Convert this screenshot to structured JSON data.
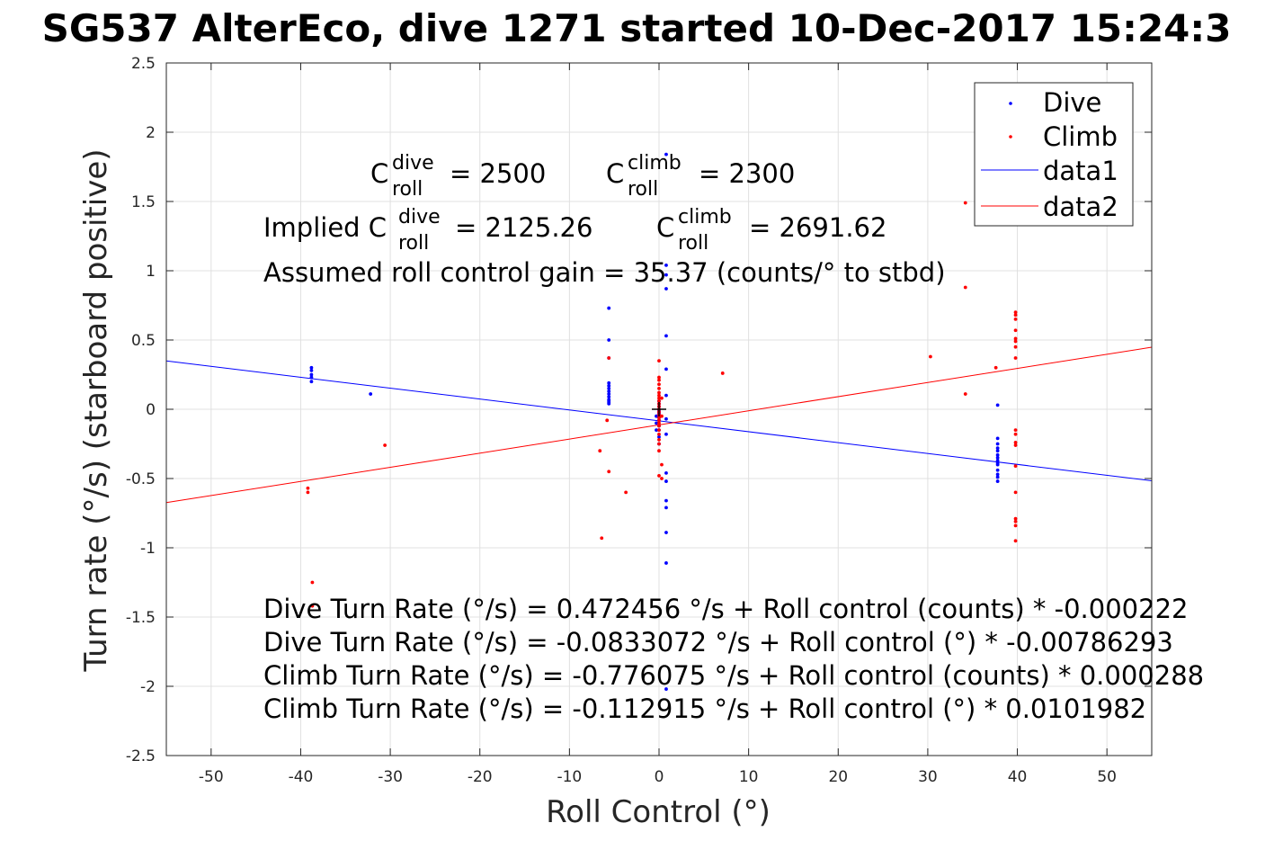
{
  "chart_data": {
    "type": "scatter",
    "title": "SG537 AlterEco, dive 1271 started 10-Dec-2017 15:24:3",
    "xlabel": "Roll Control (°)",
    "ylabel": "Turn rate (°/s) (starboard positive)",
    "xlim": [
      -55,
      55
    ],
    "ylim": [
      -2.5,
      2.5
    ],
    "xticks": [
      -50,
      -40,
      -30,
      -20,
      -10,
      0,
      10,
      20,
      30,
      40,
      50
    ],
    "yticks": [
      -2.5,
      -2,
      -1.5,
      -1,
      -0.5,
      0,
      0.5,
      1,
      1.5,
      2,
      2.5
    ],
    "xtick_labels": [
      "-50",
      "-40",
      "-30",
      "-20",
      "-10",
      "0",
      "10",
      "20",
      "30",
      "40",
      "50"
    ],
    "ytick_labels": [
      "-2.5",
      "-2",
      "-1.5",
      "-1",
      "-0.5",
      "0",
      "0.5",
      "1",
      "1.5",
      "2",
      "2.5"
    ],
    "grid": true,
    "legend_position": "top-right",
    "colors": {
      "dive": "#0000ff",
      "climb": "#ff0000",
      "axes": "#262626",
      "grid": "#e0e0e0"
    },
    "series": [
      {
        "name": "Dive",
        "kind": "points",
        "color": "#0000ff",
        "x": [
          -38.8,
          -38.8,
          -38.8,
          -38.8,
          -38.8,
          -32.2,
          -5.6,
          -5.6,
          -5.6,
          -5.6,
          -5.6,
          -5.6,
          -5.6,
          -5.6,
          -5.6,
          -5.6,
          -5.6,
          -5.6,
          -5.6,
          0.0,
          0.0,
          0.0,
          0.0,
          0.0,
          0.0,
          0.0,
          0.0,
          0.0,
          0.0,
          0.0,
          0.0,
          0.0,
          0.0,
          -0.3,
          -0.3,
          -0.3,
          0.8,
          0.8,
          0.8,
          0.8,
          0.8,
          0.8,
          0.8,
          0.8,
          0.8,
          0.8,
          0.8,
          0.8,
          0.8,
          0.8,
          0.8,
          0.8,
          37.8,
          37.8,
          37.8,
          37.8,
          37.8,
          37.8,
          37.8,
          37.8,
          37.8,
          37.8,
          37.8,
          37.8,
          37.8,
          37.8
        ],
        "y": [
          0.3,
          0.28,
          0.25,
          0.23,
          0.2,
          0.11,
          0.73,
          0.5,
          0.37,
          0.19,
          0.17,
          0.15,
          0.13,
          0.11,
          0.09,
          0.07,
          0.06,
          0.05,
          0.04,
          0.06,
          0.04,
          0.02,
          0.0,
          -0.01,
          -0.02,
          -0.03,
          -0.04,
          -0.06,
          -0.08,
          -0.12,
          -0.15,
          -0.2,
          -0.25,
          -0.05,
          -0.1,
          -0.15,
          1.84,
          1.04,
          0.97,
          0.87,
          0.53,
          0.29,
          0.1,
          -0.18,
          -0.46,
          -0.52,
          -0.66,
          -0.71,
          -0.89,
          -1.11,
          -2.02,
          -0.07,
          0.03,
          -0.21,
          -0.25,
          -0.28,
          -0.3,
          -0.33,
          -0.35,
          -0.37,
          -0.39,
          -0.4,
          -0.44,
          -0.47,
          -0.49,
          -0.52
        ]
      },
      {
        "name": "Climb",
        "kind": "points",
        "color": "#ff0000",
        "x": [
          -39.2,
          -39.2,
          -38.7,
          -38.7,
          -30.6,
          -6.6,
          -6.4,
          -5.8,
          -5.6,
          -5.6,
          -3.7,
          0.0,
          0.0,
          0.0,
          0.0,
          0.0,
          0.0,
          0.0,
          0.0,
          0.0,
          0.0,
          0.0,
          0.0,
          0.0,
          0.0,
          0.0,
          0.0,
          0.0,
          0.0,
          0.0,
          0.0,
          0.0,
          0.0,
          0.0,
          0.0,
          0.3,
          0.3,
          0.3,
          0.3,
          7.1,
          30.3,
          34.2,
          34.2,
          34.2,
          37.6,
          39.8,
          39.8,
          39.8,
          39.8,
          39.8,
          39.8,
          39.8,
          39.8,
          39.8,
          39.8,
          39.8,
          39.8,
          39.8,
          39.8,
          39.8,
          39.8,
          39.8,
          39.8
        ],
        "y": [
          -0.57,
          -0.6,
          -1.25,
          -1.42,
          -0.26,
          -0.3,
          -0.93,
          -0.08,
          -0.45,
          0.37,
          -0.6,
          0.35,
          0.23,
          0.21,
          0.18,
          0.15,
          0.12,
          0.1,
          0.08,
          0.06,
          0.04,
          0.02,
          0.0,
          -0.02,
          -0.04,
          -0.06,
          -0.08,
          -0.1,
          -0.12,
          -0.15,
          -0.18,
          -0.22,
          -0.25,
          -0.3,
          -0.48,
          -0.4,
          -0.5,
          -0.05,
          0.08,
          0.26,
          0.38,
          1.49,
          0.88,
          0.11,
          0.3,
          0.7,
          0.68,
          0.65,
          0.57,
          0.51,
          0.49,
          0.45,
          0.37,
          -0.15,
          -0.18,
          -0.24,
          -0.26,
          -0.41,
          -0.6,
          -0.79,
          -0.81,
          -0.84,
          -0.95
        ]
      },
      {
        "name": "data1",
        "kind": "line",
        "color": "#0000ff",
        "x": [
          -55,
          55
        ],
        "y": [
          0.349,
          -0.516
        ]
      },
      {
        "name": "data2",
        "kind": "line",
        "color": "#ff0000",
        "x": [
          -55,
          55
        ],
        "y": [
          -0.674,
          0.448
        ]
      }
    ],
    "center_marker": {
      "x": 0,
      "y": 0,
      "color": "#000000"
    },
    "annotations": {
      "c_roll_dive_base": "C",
      "c_roll_dive_sup": "dive",
      "c_roll_dive_sub": "roll",
      "c_roll_dive_val": "= 2500",
      "c_roll_climb_base": "C",
      "c_roll_climb_sup": "climb",
      "c_roll_climb_sub": "roll",
      "c_roll_climb_val": "= 2300",
      "implied_prefix": "Implied C",
      "implied_dive_sup": "dive",
      "implied_dive_sub": "roll",
      "implied_dive_val": "= 2125.26",
      "implied_climb_base": "C",
      "implied_climb_sup": "climb",
      "implied_climb_sub": "roll",
      "implied_climb_val": "= 2691.62",
      "gain": "Assumed roll control gain = 35.37 (counts/° to stbd)",
      "eq1": "Dive Turn Rate (°/s) = 0.472456 °/s + Roll control (counts) * -0.000222",
      "eq2": "Dive Turn Rate (°/s) = -0.0833072 °/s + Roll control (°) * -0.00786293",
      "eq3": "Climb Turn Rate (°/s) = -0.776075 °/s + Roll control (counts) * 0.000288",
      "eq4": "Climb Turn Rate (°/s) = -0.112915 °/s + Roll control (°) * 0.0101982"
    }
  }
}
